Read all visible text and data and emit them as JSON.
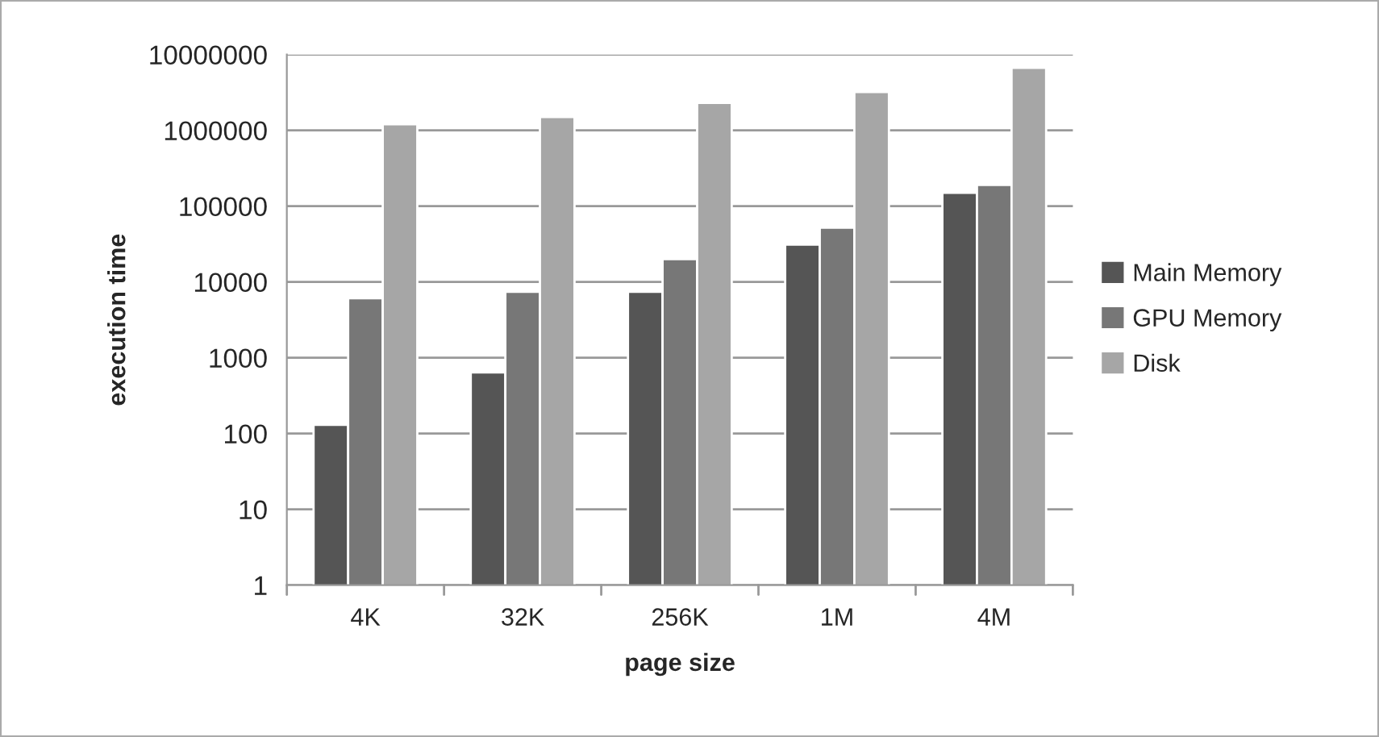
{
  "chart_data": {
    "type": "bar",
    "xlabel": "page size",
    "ylabel": "execution time",
    "categories": [
      "4K",
      "32K",
      "256K",
      "1M",
      "4M"
    ],
    "series": [
      {
        "name": "Main Memory",
        "color": "#555555",
        "values": [
          130,
          640,
          7400,
          31000,
          150000
        ]
      },
      {
        "name": "GPU Memory",
        "color": "#777777",
        "values": [
          6100,
          7400,
          20000,
          52000,
          190000
        ]
      },
      {
        "name": "Disk",
        "color": "#a6a6a6",
        "values": [
          1200000,
          1500000,
          2300000,
          3200000,
          6700000
        ]
      }
    ],
    "log": "y",
    "ylim": [
      1,
      10000000
    ],
    "yticks": [
      1,
      10,
      100,
      1000,
      10000,
      100000,
      1000000,
      10000000
    ],
    "grid": "y",
    "legend": "right"
  }
}
